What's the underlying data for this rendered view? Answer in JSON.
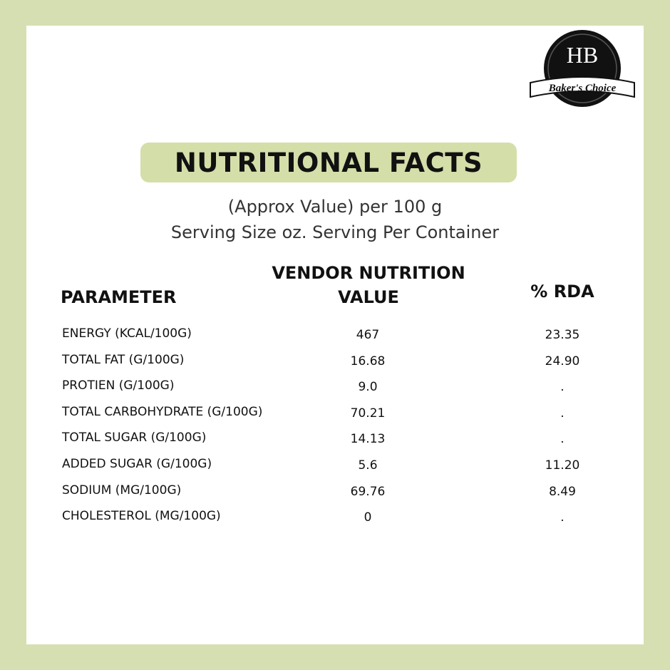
{
  "logo": {
    "monogram": "HB",
    "brand": "Baker's Choice"
  },
  "header": {
    "title": "NUTRITIONAL FACTS",
    "subtitle_lines": [
      "(Approx Value) per 100 g",
      "Serving Size oz. Serving Per Container"
    ]
  },
  "table": {
    "columns": [
      "PARAMETER",
      "VENDOR NUTRITION VALUE",
      "% RDA"
    ],
    "rows": [
      [
        "ENERGY (KCAL/100G)",
        "467",
        "23.35"
      ],
      [
        "TOTAL FAT (G/100G)",
        "16.68",
        "24.90"
      ],
      [
        "PROTIEN (G/100G)",
        "9.0",
        "."
      ],
      [
        "TOTAL CARBOHYDRATE (G/100G)",
        "70.21",
        "."
      ],
      [
        "TOTAL SUGAR (G/100G)",
        "14.13",
        "."
      ],
      [
        "ADDED SUGAR (G/100G)",
        "5.6",
        "11.20"
      ],
      [
        "SODIUM (MG/100G)",
        "69.76",
        "8.49"
      ],
      [
        "CHOLESTEROL (MG/100G)",
        "0",
        "."
      ]
    ]
  }
}
